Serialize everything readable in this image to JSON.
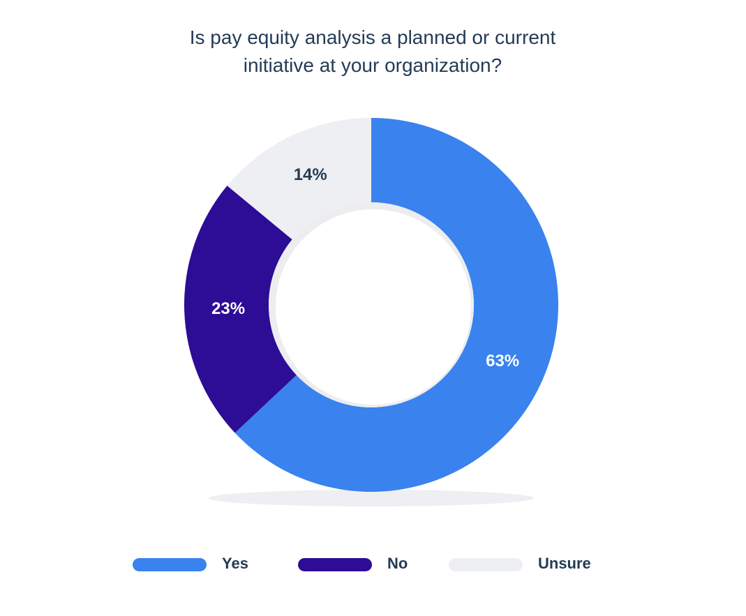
{
  "chart_data": {
    "type": "donut",
    "title": "Is pay equity analysis a planned or current initiative at your organization?",
    "categories": [
      "Yes",
      "No",
      "Unsure"
    ],
    "values": [
      63,
      23,
      14
    ],
    "value_labels": [
      "63%",
      "23%",
      "14%"
    ],
    "colors": [
      "#3a82ee",
      "#2d0c96",
      "#eeeff2"
    ]
  }
}
